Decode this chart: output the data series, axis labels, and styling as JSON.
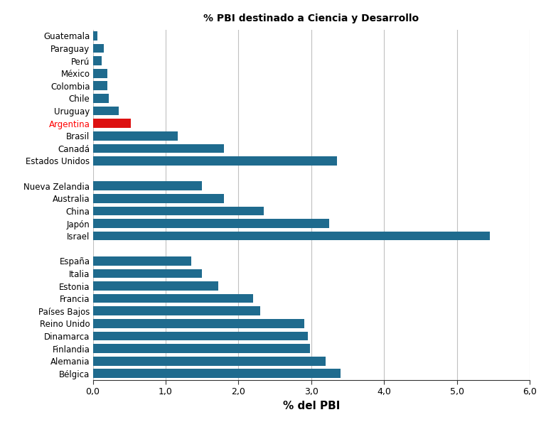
{
  "title": "% PBI destinado a Ciencia y Desarrollo",
  "xlabel": "% del PBI",
  "categories": [
    "Guatemala",
    "Paraguay",
    "Perú",
    "México",
    "Colombia",
    "Chile",
    "Uruguay",
    "Argentina",
    "Brasil",
    "Canadá",
    "Estados Unidos",
    "",
    "Nueva Zelandia",
    "Australia",
    "China",
    "Japón",
    "Israel",
    " ",
    "España",
    "Italia",
    "Estonia",
    "Francia",
    "Países Bajos",
    "Reino Unido",
    "Dinamarca",
    "Finlandia",
    "Alemania",
    "Bélgica"
  ],
  "values": [
    0.06,
    0.15,
    0.12,
    0.2,
    0.2,
    0.22,
    0.36,
    0.52,
    1.17,
    1.8,
    3.35,
    0,
    1.5,
    1.8,
    2.35,
    3.25,
    5.45,
    0,
    1.35,
    1.5,
    1.72,
    2.2,
    2.3,
    2.9,
    2.95,
    2.98,
    3.2,
    3.4
  ],
  "colors": {
    "default": "#1F6B8E",
    "argentina": "#DD1111",
    "blank": "#FFFFFF"
  },
  "xlim": [
    0,
    6.0
  ],
  "xticks": [
    0.0,
    1.0,
    2.0,
    3.0,
    4.0,
    5.0,
    6.0
  ],
  "xtick_labels": [
    "0,0",
    "1,0",
    "2,0",
    "3,0",
    "4,0",
    "5,0",
    "6,0"
  ],
  "bar_height": 0.72,
  "title_fontsize": 10,
  "label_fontsize": 8.5,
  "tick_fontsize": 9,
  "xlabel_fontsize": 11
}
